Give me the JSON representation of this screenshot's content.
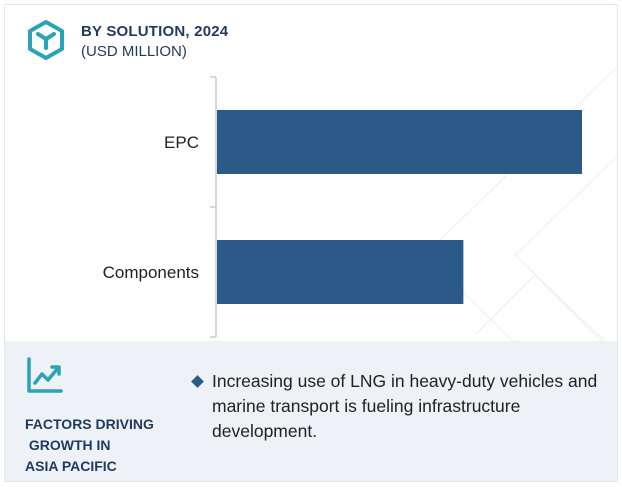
{
  "header": {
    "title": "BY SOLUTION, 2024",
    "subtitle": "(USD MILLION)",
    "logo_icon": "hexagon-cube-icon"
  },
  "colors": {
    "bar": "#2b5a88",
    "heading": "#1f3a5f",
    "accent_icon": "#2aa3b8",
    "panel_bg": "#eef1f5"
  },
  "chart_data": {
    "type": "bar",
    "orientation": "horizontal",
    "categories": [
      "EPC",
      "Components"
    ],
    "values": [
      100,
      67.5
    ],
    "title": "BY SOLUTION, 2024",
    "subtitle": "(USD MILLION)",
    "xlabel": "",
    "ylabel": "",
    "xlim": [
      0,
      100
    ],
    "grid": false,
    "legend": "none",
    "value_axis_labels": false
  },
  "factors": {
    "icon": "line-chart-growth-icon",
    "title": "FACTORS DRIVING\n GROWTH IN\nASIA PACIFIC",
    "bullets": [
      "Increasing use of LNG in heavy-duty vehicles and marine transport is fueling infrastructure development."
    ]
  }
}
